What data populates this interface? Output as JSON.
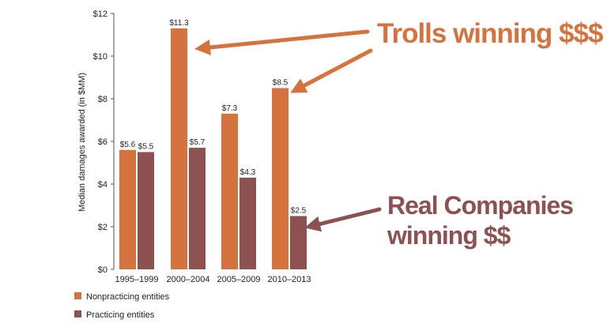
{
  "chart_data": {
    "type": "bar",
    "title": "",
    "xlabel": "",
    "ylabel": "Median damages awarded (in $MM)",
    "ylim": [
      0,
      12
    ],
    "yticks": [
      "$0",
      "$2",
      "$4",
      "$6",
      "$8",
      "$10",
      "$12"
    ],
    "categories": [
      "1995–1999",
      "2000–2004",
      "2005–2009",
      "2010–2013"
    ],
    "series": [
      {
        "name": "Nonpracticing entities",
        "color": "#D4733E",
        "values": [
          5.6,
          11.3,
          7.3,
          8.5
        ],
        "labels": [
          "$5.6",
          "$11.3",
          "$7.3",
          "$8.5"
        ]
      },
      {
        "name": "Practicing entities",
        "color": "#8C5150",
        "values": [
          5.5,
          5.7,
          4.3,
          2.5
        ],
        "labels": [
          "$5.5",
          "$5.7",
          "$4.3",
          "$2.5"
        ]
      }
    ],
    "legend_position": "bottom-left",
    "grid": false,
    "annotations": [
      {
        "text": "Trolls winning $$$",
        "color": "#D4733E"
      },
      {
        "text": "Real Companies",
        "color": "#8C5150"
      },
      {
        "text": "winning $$",
        "color": "#8C5150"
      }
    ]
  }
}
